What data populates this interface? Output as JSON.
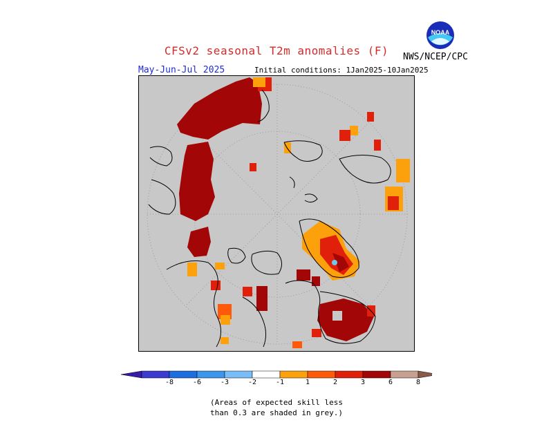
{
  "title": "CFSv2 seasonal T2m anomalies (F)",
  "agency": "NWS/NCEP/CPC",
  "period": "May-Jun-Jul 2025",
  "initial_conditions": "Initial conditions: 1Jan2025-10Jan2025",
  "logo_text": "NOAA",
  "colorbar": {
    "ticks": [
      "-8",
      "-6",
      "-3",
      "-2",
      "-1",
      "1",
      "2",
      "3",
      "6",
      "8"
    ],
    "colors": {
      "lt_minus8": "#3a1aa8",
      "m8_m6": "#3b3bd0",
      "m6_m3": "#1e6ee0",
      "m3_m2": "#3c96ee",
      "m2_m1": "#78bcf8",
      "m1_1": "#ffffff",
      "p1_p2": "#fca00c",
      "p2_p3": "#fe5a0a",
      "p3_p6": "#e0200a",
      "p6_p8": "#a30606",
      "p8_up": "#c8a090",
      "gt_8": "#8a5a4a",
      "grey_low_skill": "#c8c8c8"
    }
  },
  "note_line1": "(Areas of expected skill less",
  "note_line2": "than 0.3 are shaded in grey.)"
}
